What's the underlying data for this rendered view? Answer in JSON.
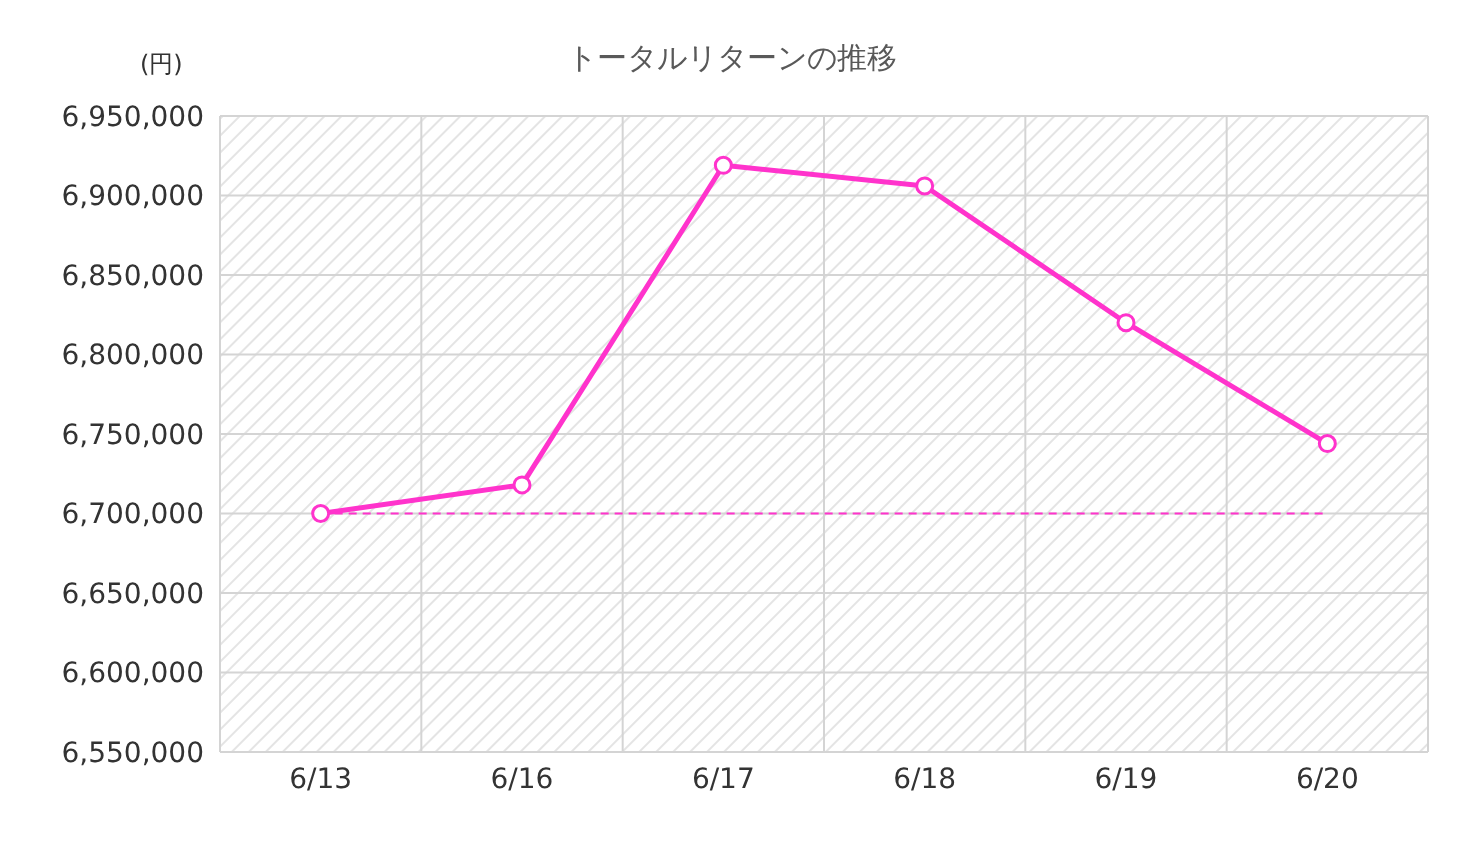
{
  "chart_data": {
    "type": "line",
    "title": "トータルリターンの推移",
    "ylabel": "(円)",
    "categories": [
      "6/13",
      "6/16",
      "6/17",
      "6/18",
      "6/19",
      "6/20"
    ],
    "series": [
      {
        "color": "#ff33cc",
        "values": [
          6700000,
          6718000,
          6919000,
          6906000,
          6820000,
          6744000
        ]
      }
    ],
    "ylim": [
      6550000,
      6950000
    ],
    "yticks": [
      {
        "value": 6550000,
        "label": "6,550,000"
      },
      {
        "value": 6600000,
        "label": "6,600,000"
      },
      {
        "value": 6650000,
        "label": "6,650,000"
      },
      {
        "value": 6700000,
        "label": "6,700,000"
      },
      {
        "value": 6750000,
        "label": "6,750,000"
      },
      {
        "value": 6800000,
        "label": "6,800,000"
      },
      {
        "value": 6850000,
        "label": "6,850,000"
      },
      {
        "value": 6900000,
        "label": "6,900,000"
      },
      {
        "value": 6950000,
        "label": "6,950,000"
      }
    ],
    "ref_lines": [
      {
        "axis": "y",
        "value": 6700000,
        "color": "#ff33cc",
        "line_style": "dashed"
      }
    ],
    "grid": true,
    "marker": "circle",
    "line_style": "solid"
  }
}
